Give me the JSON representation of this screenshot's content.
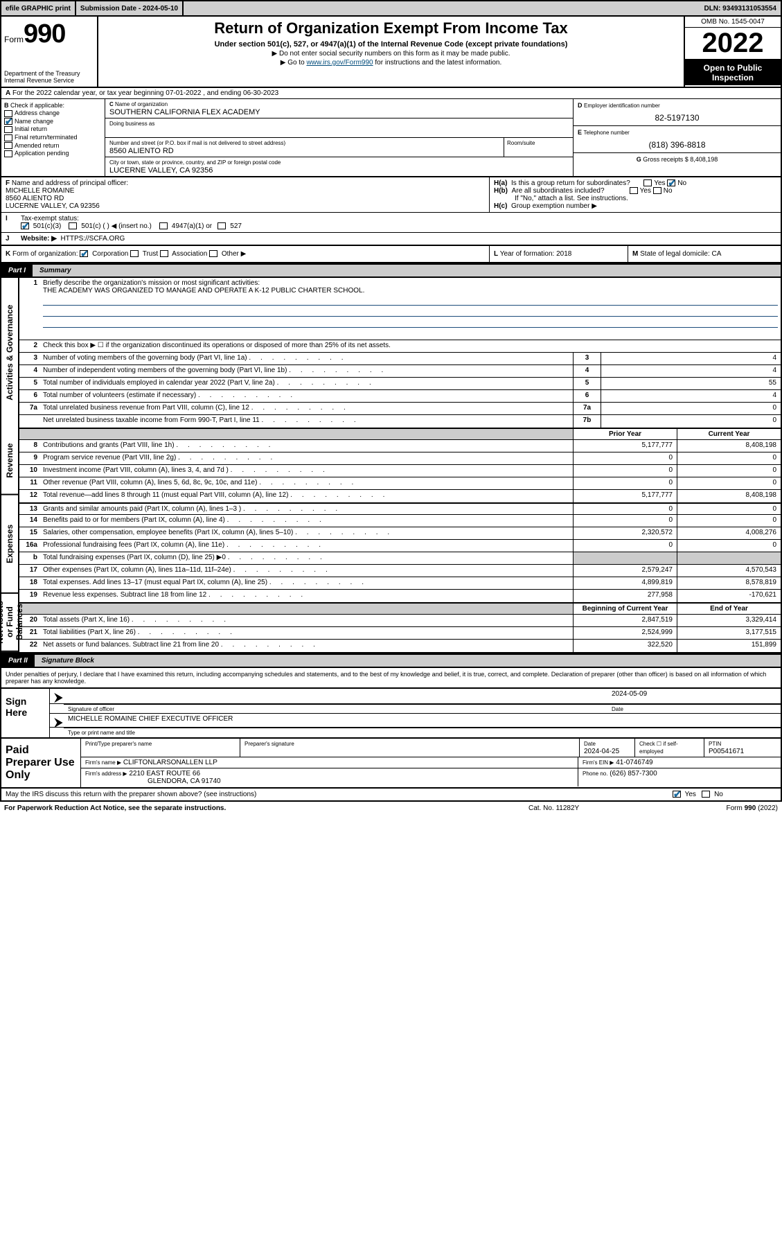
{
  "top": {
    "efile": "efile GRAPHIC print",
    "submission_label": "Submission Date - 2024-05-10",
    "dln": "DLN: 93493131053554"
  },
  "header": {
    "form_label": "Form",
    "form_num": "990",
    "dept": "Department of the Treasury Internal Revenue Service",
    "title": "Return of Organization Exempt From Income Tax",
    "sub": "Under section 501(c), 527, or 4947(a)(1) of the Internal Revenue Code (except private foundations)",
    "note1": "▶ Do not enter social security numbers on this form as it may be made public.",
    "note2_pre": "▶ Go to ",
    "note2_link": "www.irs.gov/Form990",
    "note2_post": " for instructions and the latest information.",
    "omb": "OMB No. 1545-0047",
    "year": "2022",
    "open": "Open to Public Inspection"
  },
  "rowA": "For the 2022 calendar year, or tax year beginning 07-01-2022   , and ending 06-30-2023",
  "B": {
    "hdr": "Check if applicable:",
    "opts": [
      "Address change",
      "Name change",
      "Initial return",
      "Final return/terminated",
      "Amended return",
      "Application pending"
    ],
    "checked_idx": 1
  },
  "C": {
    "name_label": "Name of organization",
    "name": "SOUTHERN CALIFORNIA FLEX ACADEMY",
    "dba_label": "Doing business as",
    "dba": "",
    "street_label": "Number and street (or P.O. box if mail is not delivered to street address)",
    "room_label": "Room/suite",
    "street": "8560 ALIENTO RD",
    "city_label": "City or town, state or province, country, and ZIP or foreign postal code",
    "city": "LUCERNE VALLEY, CA  92356"
  },
  "D": {
    "label": "Employer identification number",
    "val": "82-5197130"
  },
  "E": {
    "label": "Telephone number",
    "val": "(818) 396-8818"
  },
  "G": {
    "label": "Gross receipts $",
    "val": "8,408,198"
  },
  "F": {
    "label": "Name and address of principal officer:",
    "name": "MICHELLE ROMAINE",
    "addr1": "8560 ALIENTO RD",
    "addr2": "LUCERNE VALLEY, CA  92356"
  },
  "H": {
    "a": "Is this a group return for subordinates?",
    "b": "Are all subordinates included?",
    "b_note": "If \"No,\" attach a list. See instructions.",
    "c": "Group exemption number ▶"
  },
  "I": {
    "label": "Tax-exempt status:",
    "opt1": "501(c)(3)",
    "opt2": "501(c) (  ) ◀ (insert no.)",
    "opt3": "4947(a)(1) or",
    "opt4": "527"
  },
  "J": {
    "label": "Website: ▶",
    "val": "HTTPS://SCFA.ORG"
  },
  "K": {
    "label": "Form of organization:",
    "opts": [
      "Corporation",
      "Trust",
      "Association",
      "Other ▶"
    ]
  },
  "L": {
    "label": "Year of formation:",
    "val": "2018"
  },
  "M": {
    "label": "State of legal domicile:",
    "val": "CA"
  },
  "parts": {
    "p1": "Part I",
    "p1t": "Summary",
    "p2": "Part II",
    "p2t": "Signature Block"
  },
  "summary": {
    "s1_label": "Briefly describe the organization's mission or most significant activities:",
    "s1_val": "THE ACADEMY WAS ORGANIZED TO MANAGE AND OPERATE A K-12 PUBLIC CHARTER SCHOOL.",
    "s2": "Check this box ▶ ☐  if the organization discontinued its operations or disposed of more than 25% of its net assets.",
    "rows_top": [
      {
        "n": "3",
        "d": "Number of voting members of the governing body (Part VI, line 1a)",
        "bx": "3",
        "v": "4"
      },
      {
        "n": "4",
        "d": "Number of independent voting members of the governing body (Part VI, line 1b)",
        "bx": "4",
        "v": "4"
      },
      {
        "n": "5",
        "d": "Total number of individuals employed in calendar year 2022 (Part V, line 2a)",
        "bx": "5",
        "v": "55"
      },
      {
        "n": "6",
        "d": "Total number of volunteers (estimate if necessary)",
        "bx": "6",
        "v": "4"
      },
      {
        "n": "7a",
        "d": "Total unrelated business revenue from Part VIII, column (C), line 12",
        "bx": "7a",
        "v": "0"
      },
      {
        "n": "",
        "d": "Net unrelated business taxable income from Form 990-T, Part I, line 11",
        "bx": "7b",
        "v": "0"
      }
    ],
    "col_h1": "Prior Year",
    "col_h2": "Current Year",
    "revenue": [
      {
        "n": "8",
        "d": "Contributions and grants (Part VIII, line 1h)",
        "v1": "5,177,777",
        "v2": "8,408,198"
      },
      {
        "n": "9",
        "d": "Program service revenue (Part VIII, line 2g)",
        "v1": "0",
        "v2": "0"
      },
      {
        "n": "10",
        "d": "Investment income (Part VIII, column (A), lines 3, 4, and 7d )",
        "v1": "0",
        "v2": "0"
      },
      {
        "n": "11",
        "d": "Other revenue (Part VIII, column (A), lines 5, 6d, 8c, 9c, 10c, and 11e)",
        "v1": "0",
        "v2": "0"
      },
      {
        "n": "12",
        "d": "Total revenue—add lines 8 through 11 (must equal Part VIII, column (A), line 12)",
        "v1": "5,177,777",
        "v2": "8,408,198"
      }
    ],
    "expenses": [
      {
        "n": "13",
        "d": "Grants and similar amounts paid (Part IX, column (A), lines 1–3 )",
        "v1": "0",
        "v2": "0"
      },
      {
        "n": "14",
        "d": "Benefits paid to or for members (Part IX, column (A), line 4)",
        "v1": "0",
        "v2": "0"
      },
      {
        "n": "15",
        "d": "Salaries, other compensation, employee benefits (Part IX, column (A), lines 5–10)",
        "v1": "2,320,572",
        "v2": "4,008,276"
      },
      {
        "n": "16a",
        "d": "Professional fundraising fees (Part IX, column (A), line 11e)",
        "v1": "0",
        "v2": "0"
      },
      {
        "n": "b",
        "d": "Total fundraising expenses (Part IX, column (D), line 25) ▶0",
        "v1": "",
        "v2": "",
        "shade": true
      },
      {
        "n": "17",
        "d": "Other expenses (Part IX, column (A), lines 11a–11d, 11f–24e)",
        "v1": "2,579,247",
        "v2": "4,570,543"
      },
      {
        "n": "18",
        "d": "Total expenses. Add lines 13–17 (must equal Part IX, column (A), line 25)",
        "v1": "4,899,819",
        "v2": "8,578,819"
      },
      {
        "n": "19",
        "d": "Revenue less expenses. Subtract line 18 from line 12",
        "v1": "277,958",
        "v2": "-170,621"
      }
    ],
    "col_h3": "Beginning of Current Year",
    "col_h4": "End of Year",
    "netassets": [
      {
        "n": "20",
        "d": "Total assets (Part X, line 16)",
        "v1": "2,847,519",
        "v2": "3,329,414"
      },
      {
        "n": "21",
        "d": "Total liabilities (Part X, line 26)",
        "v1": "2,524,999",
        "v2": "3,177,515"
      },
      {
        "n": "22",
        "d": "Net assets or fund balances. Subtract line 21 from line 20",
        "v1": "322,520",
        "v2": "151,899"
      }
    ],
    "tabs": [
      "Activities & Governance",
      "Revenue",
      "Expenses",
      "Net Assets or Fund Balances"
    ]
  },
  "sig": {
    "intro": "Under penalties of perjury, I declare that I have examined this return, including accompanying schedules and statements, and to the best of my knowledge and belief, it is true, correct, and complete. Declaration of preparer (other than officer) is based on all information of which preparer has any knowledge.",
    "sign_here": "Sign Here",
    "sig_label": "Signature of officer",
    "date_label": "Date",
    "date": "2024-05-09",
    "name": "MICHELLE ROMAINE  CHIEF EXECUTIVE OFFICER",
    "name_label": "Type or print name and title"
  },
  "prep": {
    "title": "Paid Preparer Use Only",
    "h1": "Print/Type preparer's name",
    "h2": "Preparer's signature",
    "h3": "Date",
    "date": "2024-04-25",
    "h4": "Check ☐ if self-employed",
    "h5": "PTIN",
    "ptin": "P00541671",
    "firm_name_l": "Firm's name      ▶",
    "firm_name": "CLIFTONLARSONALLEN LLP",
    "firm_ein_l": "Firm's EIN ▶",
    "firm_ein": "41-0746749",
    "firm_addr_l": "Firm's address ▶",
    "firm_addr1": "2210 EAST ROUTE 66",
    "firm_addr2": "GLENDORA, CA  91740",
    "phone_l": "Phone no.",
    "phone": "(626) 857-7300"
  },
  "footer": {
    "discuss": "May the IRS discuss this return with the preparer shown above? (see instructions)",
    "yes": "Yes",
    "no": "No",
    "paperwork": "For Paperwork Reduction Act Notice, see the separate instructions.",
    "cat": "Cat. No. 11282Y",
    "form": "Form 990 (2022)"
  }
}
